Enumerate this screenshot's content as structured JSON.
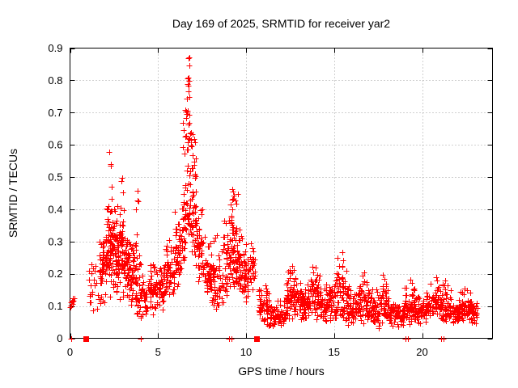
{
  "chart_data": {
    "type": "scatter",
    "title": "Day 169 of 2025, SRMTID for receiver yar2",
    "xlabel": "GPS time / hours",
    "ylabel": "SRMTID / TECUs",
    "xlim": [
      0,
      24
    ],
    "ylim": [
      0,
      0.9
    ],
    "xticks": [
      0,
      5,
      10,
      15,
      20
    ],
    "xtick_labels": [
      "0",
      "5",
      "10",
      "15",
      "20"
    ],
    "yticks": [
      0,
      0.1,
      0.2,
      0.3,
      0.4,
      0.5,
      0.6,
      0.7,
      0.8,
      0.9
    ],
    "ytick_labels": [
      "0",
      "0.1",
      "0.2",
      "0.3",
      "0.4",
      "0.5",
      "0.6",
      "0.7",
      "0.8",
      "0.9"
    ],
    "grid": true,
    "legend": "none",
    "colors": {
      "points": "#ff0000",
      "grid": "#a0a0a0",
      "axis": "#000000",
      "text": "#000000",
      "background": "#ffffff"
    },
    "bins_format": [
      "x_start_hours",
      "x_end_hours",
      "count",
      "y_min",
      "y_max",
      "y_mode"
    ],
    "series": [
      {
        "name": "srmtid",
        "marker": "plus",
        "color": "#ff0000",
        "density_bins": [
          [
            0.02,
            0.28,
            9,
            0.085,
            0.15,
            0.115
          ],
          [
            1.05,
            1.65,
            20,
            0.07,
            0.25,
            0.14
          ],
          [
            1.65,
            2.0,
            48,
            0.1,
            0.31,
            0.2
          ],
          [
            2.0,
            2.35,
            58,
            0.12,
            0.44,
            0.24
          ],
          [
            2.35,
            2.7,
            58,
            0.1,
            0.46,
            0.27
          ],
          [
            2.7,
            3.05,
            55,
            0.1,
            0.45,
            0.25
          ],
          [
            3.05,
            3.45,
            50,
            0.1,
            0.34,
            0.21
          ],
          [
            3.45,
            3.8,
            45,
            0.08,
            0.33,
            0.18
          ],
          [
            3.8,
            4.1,
            30,
            0.05,
            0.3,
            0.13
          ],
          [
            4.1,
            4.5,
            28,
            0.03,
            0.22,
            0.09
          ],
          [
            4.5,
            5.0,
            40,
            0.07,
            0.24,
            0.13
          ],
          [
            5.0,
            5.45,
            40,
            0.08,
            0.27,
            0.15
          ],
          [
            5.45,
            5.9,
            42,
            0.1,
            0.33,
            0.18
          ],
          [
            5.9,
            6.35,
            48,
            0.14,
            0.42,
            0.24
          ],
          [
            6.35,
            6.6,
            30,
            0.2,
            0.55,
            0.33
          ],
          [
            6.6,
            6.9,
            42,
            0.25,
            0.72,
            0.38
          ],
          [
            6.9,
            7.25,
            45,
            0.22,
            0.62,
            0.34
          ],
          [
            7.25,
            7.6,
            40,
            0.15,
            0.42,
            0.26
          ],
          [
            7.6,
            8.1,
            48,
            0.1,
            0.32,
            0.18
          ],
          [
            8.1,
            8.7,
            50,
            0.08,
            0.33,
            0.16
          ],
          [
            8.7,
            9.1,
            40,
            0.12,
            0.38,
            0.22
          ],
          [
            9.1,
            9.45,
            50,
            0.14,
            0.44,
            0.27
          ],
          [
            9.45,
            9.8,
            45,
            0.11,
            0.36,
            0.22
          ],
          [
            9.8,
            10.15,
            40,
            0.1,
            0.3,
            0.17
          ],
          [
            10.15,
            10.5,
            26,
            0.13,
            0.3,
            0.19
          ],
          [
            10.7,
            11.3,
            55,
            0.04,
            0.17,
            0.085
          ],
          [
            11.3,
            12.3,
            80,
            0.03,
            0.135,
            0.065
          ],
          [
            12.3,
            12.95,
            70,
            0.05,
            0.22,
            0.11
          ],
          [
            12.95,
            13.6,
            70,
            0.05,
            0.19,
            0.1
          ],
          [
            13.6,
            14.3,
            70,
            0.05,
            0.23,
            0.11
          ],
          [
            14.3,
            15.1,
            70,
            0.04,
            0.19,
            0.1
          ],
          [
            15.1,
            15.7,
            55,
            0.05,
            0.27,
            0.11
          ],
          [
            15.7,
            16.4,
            65,
            0.035,
            0.17,
            0.085
          ],
          [
            16.4,
            17.1,
            65,
            0.03,
            0.2,
            0.09
          ],
          [
            17.1,
            17.6,
            50,
            0.03,
            0.16,
            0.08
          ],
          [
            17.6,
            18.1,
            50,
            0.04,
            0.19,
            0.09
          ],
          [
            18.1,
            19.0,
            65,
            0.03,
            0.13,
            0.07
          ],
          [
            19.0,
            19.6,
            55,
            0.04,
            0.18,
            0.09
          ],
          [
            19.6,
            20.4,
            65,
            0.04,
            0.16,
            0.085
          ],
          [
            20.4,
            21.1,
            55,
            0.05,
            0.19,
            0.1
          ],
          [
            21.1,
            21.7,
            45,
            0.04,
            0.18,
            0.09
          ],
          [
            21.7,
            22.1,
            35,
            0.04,
            0.12,
            0.07
          ],
          [
            22.1,
            22.75,
            55,
            0.05,
            0.15,
            0.09
          ],
          [
            22.75,
            23.15,
            35,
            0.04,
            0.125,
            0.075
          ]
        ],
        "points": [
          [
            6.73,
            0.868
          ],
          [
            6.78,
            0.87
          ],
          [
            6.76,
            0.845
          ],
          [
            6.68,
            0.806
          ],
          [
            6.73,
            0.809
          ],
          [
            6.79,
            0.798
          ],
          [
            6.7,
            0.788
          ],
          [
            6.75,
            0.783
          ],
          [
            6.72,
            0.765
          ],
          [
            6.66,
            0.743
          ],
          [
            6.8,
            0.748
          ],
          [
            6.55,
            0.709
          ],
          [
            6.62,
            0.702
          ],
          [
            6.66,
            0.695
          ],
          [
            6.71,
            0.706
          ],
          [
            6.76,
            0.692
          ],
          [
            6.6,
            0.684
          ],
          [
            6.42,
            0.668
          ],
          [
            6.48,
            0.645
          ],
          [
            6.53,
            0.625
          ],
          [
            6.86,
            0.638
          ],
          [
            6.95,
            0.632
          ],
          [
            7.05,
            0.617
          ],
          [
            7.12,
            0.607
          ],
          [
            6.4,
            0.592
          ],
          [
            6.52,
            0.572
          ],
          [
            6.63,
            0.585
          ],
          [
            6.98,
            0.568
          ],
          [
            7.08,
            0.547
          ],
          [
            7.15,
            0.557
          ],
          [
            2.25,
            0.577
          ],
          [
            2.3,
            0.54
          ],
          [
            2.33,
            0.535
          ],
          [
            2.36,
            0.47
          ],
          [
            2.95,
            0.497
          ],
          [
            2.9,
            0.488
          ],
          [
            3.0,
            0.452
          ],
          [
            3.85,
            0.458
          ],
          [
            3.82,
            0.428
          ],
          [
            3.88,
            0.424
          ],
          [
            3.76,
            0.401
          ],
          [
            9.22,
            0.463
          ],
          [
            9.28,
            0.455
          ],
          [
            9.33,
            0.442
          ],
          [
            9.25,
            0.432
          ],
          [
            9.38,
            0.428
          ],
          [
            9.52,
            0.448
          ],
          [
            9.45,
            0.418
          ],
          [
            10.28,
            0.295
          ],
          [
            10.35,
            0.28
          ],
          [
            12.62,
            0.225
          ],
          [
            12.7,
            0.212
          ],
          [
            12.55,
            0.203
          ],
          [
            13.75,
            0.222
          ],
          [
            13.82,
            0.205
          ],
          [
            15.48,
            0.268
          ],
          [
            15.52,
            0.242
          ],
          [
            15.45,
            0.225
          ],
          [
            16.72,
            0.205
          ],
          [
            16.6,
            0.195
          ],
          [
            17.78,
            0.196
          ],
          [
            17.85,
            0.185
          ],
          [
            19.35,
            0.182
          ],
          [
            19.42,
            0.172
          ],
          [
            20.82,
            0.19
          ],
          [
            21.32,
            0.178
          ],
          [
            21.45,
            0.165
          ],
          [
            22.42,
            0.155
          ],
          [
            22.55,
            0.148
          ]
        ]
      },
      {
        "name": "axis-flags-plus",
        "marker": "plus",
        "color": "#ff0000",
        "points": [
          [
            0.05,
            0
          ],
          [
            4.03,
            0
          ],
          [
            9.03,
            0
          ],
          [
            9.15,
            0
          ],
          [
            19.05,
            0
          ],
          [
            19.18,
            0
          ],
          [
            21.08,
            0
          ],
          [
            21.22,
            0
          ]
        ]
      },
      {
        "name": "axis-flags-square",
        "marker": "square",
        "color": "#ff0000",
        "points": [
          [
            0.88,
            0
          ],
          [
            10.6,
            0
          ]
        ]
      }
    ]
  }
}
